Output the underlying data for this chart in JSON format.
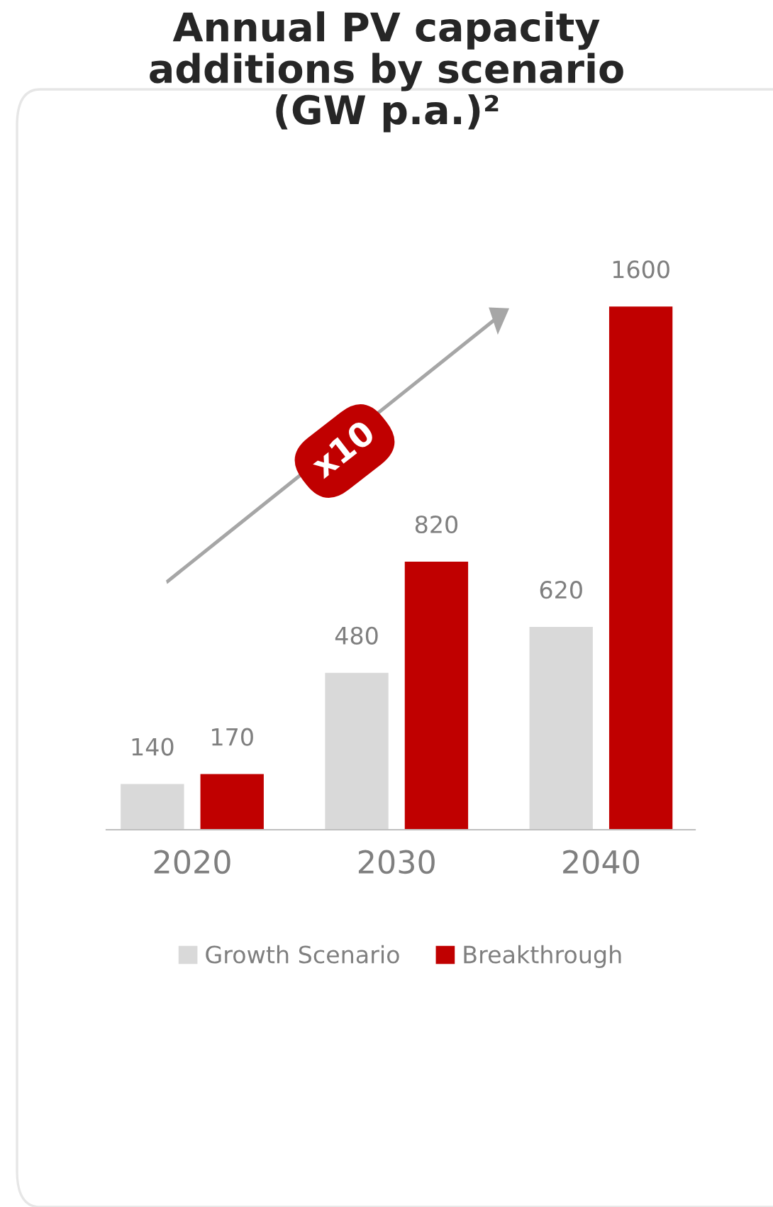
{
  "chart_data": {
    "type": "bar",
    "title": "Annual PV capacity\nadditions by scenario\n(GW p.a.)²",
    "categories": [
      "2020",
      "2030",
      "2040"
    ],
    "series": [
      {
        "name": "Growth Scenario",
        "color": "#d9d9d9",
        "values": [
          140,
          480,
          620
        ]
      },
      {
        "name": "Breakthrough",
        "color": "#c00000",
        "values": [
          170,
          820,
          1600
        ]
      }
    ],
    "data_labels": true,
    "legend": "bottom",
    "grid": false,
    "annotations": [
      "x10"
    ]
  }
}
